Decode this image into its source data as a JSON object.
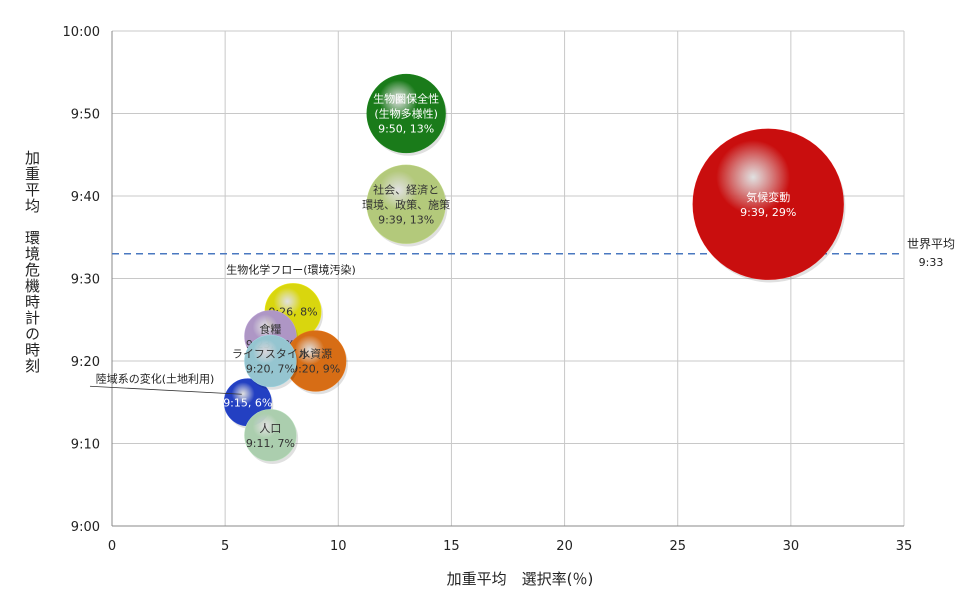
{
  "chart_data": {
    "type": "scatter",
    "xlabel": "加重平均　選択率(％)",
    "ylabel": "加重平均　環境危機時計の時刻",
    "xlim": [
      0,
      35
    ],
    "ylim": [
      "9:00",
      "10:00"
    ],
    "x_ticks": [
      "0",
      "5",
      "10",
      "15",
      "20",
      "25",
      "30",
      "35"
    ],
    "y_ticks": [
      "9:00",
      "9:10",
      "9:20",
      "9:30",
      "9:40",
      "9:50",
      "10:00"
    ],
    "grid": true,
    "reference_line": {
      "label": "世界平均",
      "value_label": "9:33",
      "y": "9:33"
    },
    "points": [
      {
        "label": "気候変動",
        "value_label": "9:39, 29%",
        "x": 29,
        "y": "9:39",
        "color": "#e01010",
        "text_color": "#ffffff"
      },
      {
        "label": "生物圏保全性\n(生物多様性)",
        "value_label": "9:50, 13%",
        "x": 13,
        "y": "9:50",
        "color": "#1e8a1e",
        "text_color": "#ffffff"
      },
      {
        "label": "社会、経済と\n環境、政策、施策",
        "value_label": "9:39, 13%",
        "x": 13,
        "y": "9:39",
        "color": "#c8e08a",
        "text_color": "#333333"
      },
      {
        "label": "生物化学フロー(環境汚染)",
        "value_label": "9:26, 8%",
        "x": 8,
        "y": "9:26",
        "color": "#f2ef10",
        "text_color": "#333333",
        "label_outside": true
      },
      {
        "label": "食糧",
        "value_label": "9:23, 7%",
        "x": 7,
        "y": "9:23",
        "color": "#c2a8dc",
        "text_color": "#333333"
      },
      {
        "label": "水資源",
        "value_label": "9:20, 9%",
        "x": 9,
        "y": "9:20",
        "color": "#f07a18",
        "text_color": "#333333"
      },
      {
        "label": "ライフスタイル",
        "value_label": "9:20, 7%",
        "x": 7,
        "y": "9:20",
        "color": "#a6dce8",
        "text_color": "#333333"
      },
      {
        "label": "陸域系の変化(土地利用)",
        "value_label": "9:15, 6%",
        "x": 6,
        "y": "9:15",
        "color": "#2848d8",
        "text_color": "#ffffff",
        "label_outside": true
      },
      {
        "label": "人口",
        "value_label": "9:11, 7%",
        "x": 7,
        "y": "9:11",
        "color": "#bfe6c2",
        "text_color": "#333333"
      }
    ]
  }
}
